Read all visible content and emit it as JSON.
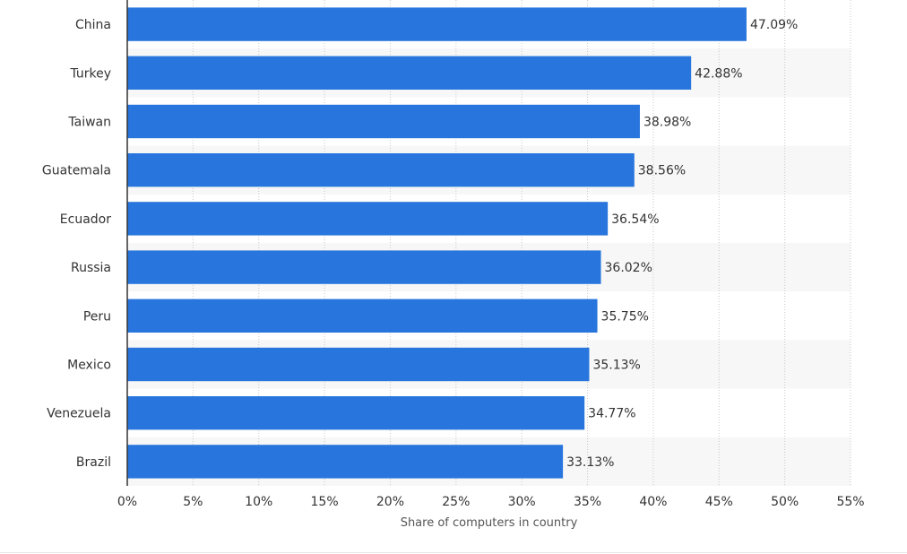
{
  "chart_data": {
    "type": "bar",
    "orientation": "horizontal",
    "categories": [
      "China",
      "Turkey",
      "Taiwan",
      "Guatemala",
      "Ecuador",
      "Russia",
      "Peru",
      "Mexico",
      "Venezuela",
      "Brazil"
    ],
    "values": [
      47.09,
      42.88,
      38.98,
      38.56,
      36.54,
      36.02,
      35.75,
      35.13,
      34.77,
      33.13
    ],
    "value_labels": [
      "47.09%",
      "42.88%",
      "38.98%",
      "38.56%",
      "36.54%",
      "36.02%",
      "35.75%",
      "35.13%",
      "34.77%",
      "33.13%"
    ],
    "xlabel": "Share of computers in country",
    "ylabel": "",
    "xlim": [
      0,
      55
    ],
    "xticks": [
      0,
      5,
      10,
      15,
      20,
      25,
      30,
      35,
      40,
      45,
      50,
      55
    ],
    "xtick_labels": [
      "0%",
      "5%",
      "10%",
      "15%",
      "20%",
      "25%",
      "30%",
      "35%",
      "40%",
      "45%",
      "50%",
      "55%"
    ],
    "grid": true,
    "bar_color": "#2876dd",
    "band_color": "#f7f7f7"
  }
}
